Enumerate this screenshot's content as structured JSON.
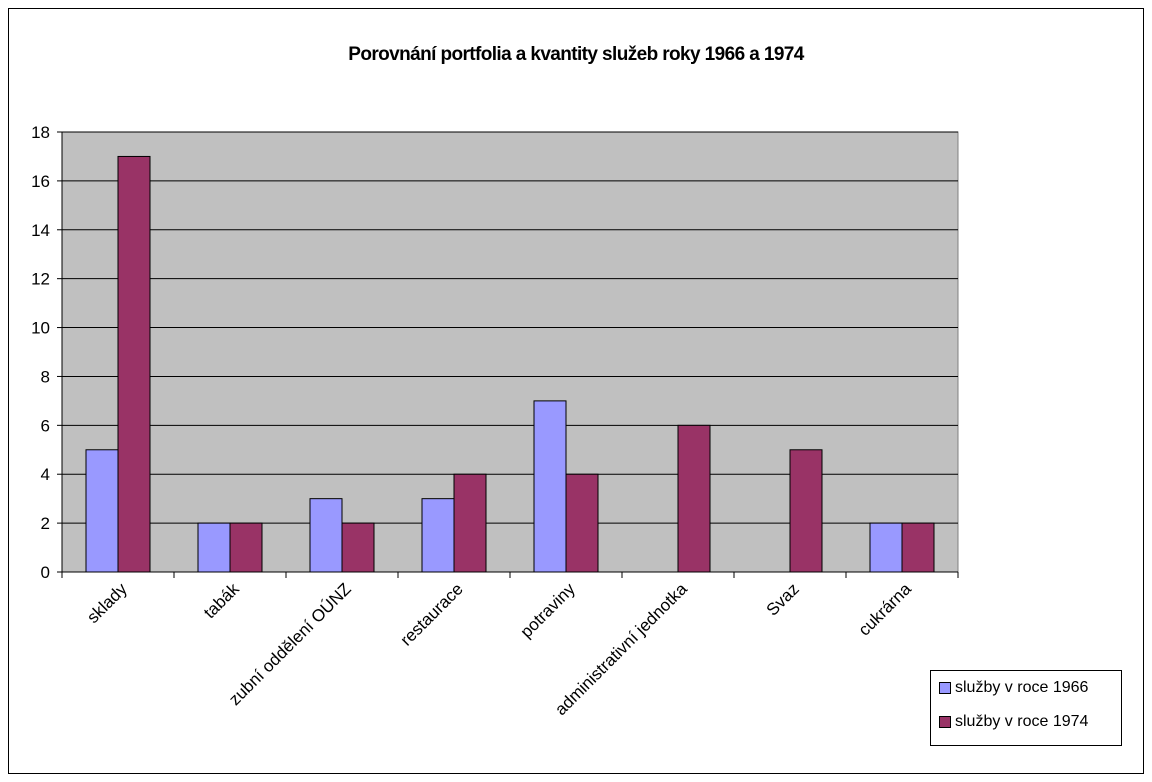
{
  "chart_data": {
    "type": "bar",
    "title": "Porovnání portfolia a kvantity služeb roky 1966 a 1974",
    "xlabel": "",
    "ylabel": "",
    "categories": [
      "sklady",
      "tabák",
      "zubní oddělení OÚNZ",
      "restaurace",
      "potraviny",
      "administrativní jednotka",
      "Svaz",
      "cukrárna"
    ],
    "category_labels_shown": [
      "sklady",
      "tabák",
      "zubní oddělení OÚNZ",
      "restaurace",
      "potraviny",
      "administrativní jednotka",
      "Svaz",
      "cukrárna"
    ],
    "series": [
      {
        "name": "služby v roce 1966",
        "color": "#9999ff",
        "values": [
          5,
          2,
          3,
          3,
          7,
          0,
          0,
          2
        ]
      },
      {
        "name": "služby v roce 1974",
        "color": "#993366",
        "values": [
          17,
          2,
          2,
          4,
          4,
          6,
          5,
          2
        ]
      }
    ],
    "ylim": [
      0,
      18
    ],
    "yticks": [
      0,
      2,
      4,
      6,
      8,
      10,
      12,
      14,
      16,
      18
    ],
    "grid": true,
    "plot_background": "#c0c0c0",
    "legend_position": "bottom-right"
  }
}
